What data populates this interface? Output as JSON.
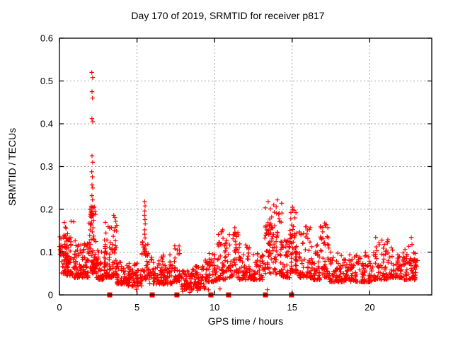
{
  "chart_data": {
    "type": "scatter",
    "title": "Day 170 of 2019, SRMTID for receiver p817",
    "xlabel": "GPS time / hours",
    "ylabel": "SRMTID / TECUs",
    "xlim": [
      0,
      24
    ],
    "ylim": [
      0,
      0.6
    ],
    "grid": true,
    "legend": "none",
    "marker": "plus",
    "marker_color": "#ff0000",
    "grid_color": "#a0a0a0",
    "frame_color": "#000000",
    "x_ticks": [
      [
        0,
        "0"
      ],
      [
        5,
        "5"
      ],
      [
        10,
        "10"
      ],
      [
        15,
        "15"
      ],
      [
        20,
        "20"
      ]
    ],
    "y_ticks": [
      [
        0,
        "0"
      ],
      [
        0.1,
        "0.1"
      ],
      [
        0.2,
        "0.2"
      ],
      [
        0.3,
        "0.3"
      ],
      [
        0.4,
        "0.4"
      ],
      [
        0.5,
        "0.5"
      ],
      [
        0.6,
        "0.6"
      ]
    ],
    "axis_event_markers_hours": [
      3.24,
      5.98,
      7.57,
      9.76,
      10.9,
      13.28,
      14.96
    ],
    "outlier_points": [
      [
        2.08,
        0.52
      ],
      [
        2.14,
        0.508
      ],
      [
        2.1,
        0.475
      ],
      [
        2.13,
        0.46
      ],
      [
        2.09,
        0.412
      ],
      [
        2.15,
        0.405
      ],
      [
        2.1,
        0.325
      ],
      [
        2.14,
        0.31
      ],
      [
        2.08,
        0.288
      ],
      [
        2.12,
        0.276
      ],
      [
        2.1,
        0.257
      ],
      [
        2.15,
        0.25
      ],
      [
        2.09,
        0.232
      ],
      [
        2.13,
        0.222
      ],
      [
        2.11,
        0.205
      ],
      [
        2.1,
        0.196
      ],
      [
        2.12,
        0.186
      ],
      [
        5.49,
        0.218
      ],
      [
        5.52,
        0.208
      ],
      [
        5.5,
        0.196
      ],
      [
        5.48,
        0.186
      ],
      [
        5.51,
        0.176
      ],
      [
        5.53,
        0.166
      ],
      [
        5.5,
        0.152
      ],
      [
        5.49,
        0.142
      ],
      [
        5.52,
        0.133
      ],
      [
        13.45,
        0.218
      ],
      [
        14.05,
        0.222
      ],
      [
        15.02,
        0.205
      ],
      [
        10.52,
        0.152
      ],
      [
        17.1,
        0.168
      ],
      [
        3.5,
        0.186
      ],
      [
        0.75,
        0.172
      ],
      [
        11.3,
        0.157
      ],
      [
        22.68,
        0.134
      ],
      [
        7.95,
        0.008
      ],
      [
        8.4,
        0.006
      ],
      [
        8.9,
        0.01
      ],
      [
        9.6,
        0.012
      ],
      [
        13.4,
        0.012
      ],
      [
        4.95,
        0.013
      ],
      [
        10.35,
        0.014
      ]
    ],
    "density_clusters": [
      [
        0.0,
        0.6,
        60,
        0.05,
        0.14,
        2.0
      ],
      [
        0.3,
        0.95,
        50,
        0.045,
        0.175,
        2.0
      ],
      [
        0.95,
        1.5,
        55,
        0.04,
        0.13,
        2.0
      ],
      [
        1.5,
        1.9,
        42,
        0.04,
        0.12,
        2.0
      ],
      [
        1.9,
        2.35,
        70,
        0.05,
        0.21,
        1.6
      ],
      [
        2.35,
        2.9,
        52,
        0.035,
        0.11,
        2.0
      ],
      [
        2.9,
        3.25,
        42,
        0.04,
        0.17,
        2.0
      ],
      [
        3.25,
        3.7,
        45,
        0.04,
        0.185,
        2.0
      ],
      [
        3.7,
        4.4,
        58,
        0.025,
        0.08,
        1.8
      ],
      [
        4.4,
        5.3,
        68,
        0.02,
        0.075,
        1.8
      ],
      [
        5.3,
        5.75,
        42,
        0.035,
        0.13,
        1.8
      ],
      [
        5.75,
        6.6,
        62,
        0.025,
        0.09,
        2.0
      ],
      [
        6.6,
        7.3,
        58,
        0.025,
        0.095,
        2.0
      ],
      [
        7.3,
        7.8,
        42,
        0.03,
        0.115,
        2.0
      ],
      [
        7.8,
        8.6,
        62,
        0.012,
        0.06,
        1.8
      ],
      [
        8.6,
        9.4,
        62,
        0.015,
        0.07,
        1.8
      ],
      [
        9.4,
        10.2,
        58,
        0.03,
        0.1,
        2.0
      ],
      [
        10.2,
        10.8,
        48,
        0.035,
        0.15,
        2.0
      ],
      [
        10.8,
        11.6,
        58,
        0.04,
        0.155,
        2.0
      ],
      [
        11.6,
        12.4,
        58,
        0.035,
        0.125,
        2.0
      ],
      [
        12.4,
        13.2,
        58,
        0.035,
        0.105,
        2.0
      ],
      [
        13.2,
        13.7,
        52,
        0.05,
        0.215,
        1.5
      ],
      [
        13.7,
        14.35,
        58,
        0.045,
        0.22,
        1.7
      ],
      [
        14.35,
        14.85,
        42,
        0.04,
        0.13,
        2.0
      ],
      [
        14.85,
        15.25,
        48,
        0.05,
        0.205,
        1.5
      ],
      [
        15.25,
        16.2,
        66,
        0.04,
        0.16,
        2.2
      ],
      [
        16.2,
        16.8,
        48,
        0.035,
        0.12,
        2.0
      ],
      [
        16.8,
        17.4,
        48,
        0.04,
        0.17,
        2.0
      ],
      [
        17.4,
        18.3,
        62,
        0.03,
        0.1,
        2.0
      ],
      [
        18.3,
        19.2,
        62,
        0.03,
        0.095,
        2.0
      ],
      [
        19.2,
        20.2,
        66,
        0.03,
        0.1,
        2.0
      ],
      [
        20.2,
        21.2,
        66,
        0.035,
        0.135,
        2.2
      ],
      [
        21.2,
        22.2,
        66,
        0.04,
        0.115,
        2.0
      ],
      [
        22.2,
        22.95,
        52,
        0.035,
        0.12,
        2.0
      ],
      [
        22.75,
        23.1,
        16,
        0.04,
        0.1,
        1.5
      ]
    ],
    "seed": 170
  }
}
